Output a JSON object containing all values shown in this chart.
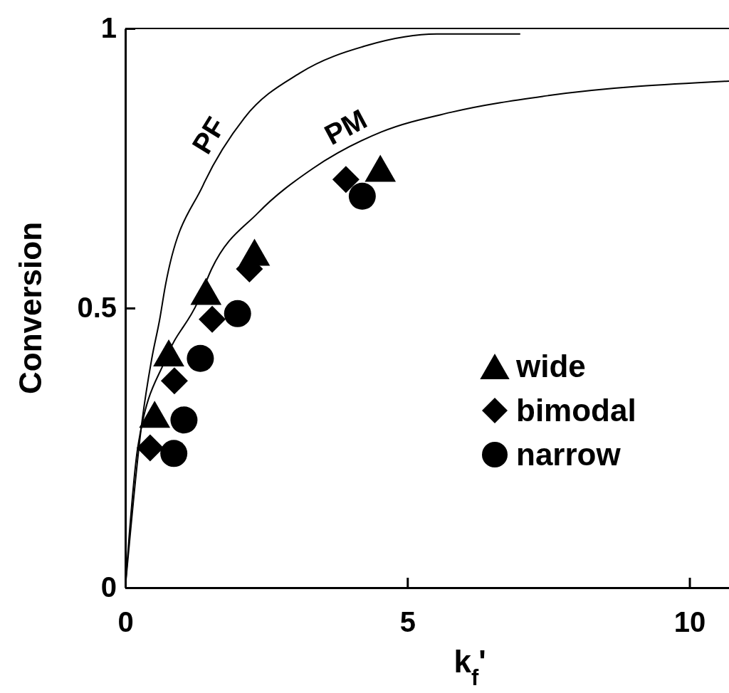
{
  "chart_data": {
    "type": "scatter",
    "xlabel": "k$_{f}$'",
    "ylabel": "Conversion",
    "xlim": [
      0,
      10.7
    ],
    "ylim": [
      0,
      1
    ],
    "xticks": [
      0,
      5,
      10
    ],
    "yticks": [
      0,
      0.5,
      1
    ],
    "grid": false,
    "legend": "right",
    "series": [
      {
        "name": "PF",
        "type": "line",
        "color": "#000000",
        "marker": "none",
        "x": [
          0,
          0.3,
          0.47,
          0.61,
          0.71,
          1.38,
          2.11,
          3.09,
          4.3,
          5.52,
          7.0
        ],
        "values": [
          0,
          0.3,
          0.41,
          0.48,
          0.54,
          0.72,
          0.84,
          0.92,
          0.97,
          0.99,
          0.99
        ]
      },
      {
        "name": "PM",
        "type": "line",
        "color": "#000000",
        "marker": "none",
        "x": [
          0,
          0.22,
          0.72,
          1.28,
          1.53,
          2.35,
          3.33,
          4.54,
          5.77,
          7.5,
          10.7
        ],
        "values": [
          0,
          0.25,
          0.41,
          0.51,
          0.57,
          0.67,
          0.75,
          0.815,
          0.85,
          0.88,
          0.906
        ]
      },
      {
        "name": "wide",
        "color": "#000000",
        "marker": "triangle",
        "x": [
          0.52,
          0.77,
          1.43,
          2.29,
          4.52
        ],
        "values": [
          0.31,
          0.42,
          0.53,
          0.6,
          0.75
        ]
      },
      {
        "name": "bimodal",
        "color": "#000000",
        "marker": "diamond",
        "x": [
          0.44,
          0.87,
          1.54,
          2.2,
          3.91
        ],
        "values": [
          0.25,
          0.37,
          0.48,
          0.57,
          0.73
        ]
      },
      {
        "name": "narrow",
        "color": "#000000",
        "marker": "circle",
        "x": [
          0.86,
          1.04,
          1.33,
          1.99,
          4.2
        ],
        "values": [
          0.24,
          0.3,
          0.41,
          0.49,
          0.7
        ]
      }
    ]
  }
}
